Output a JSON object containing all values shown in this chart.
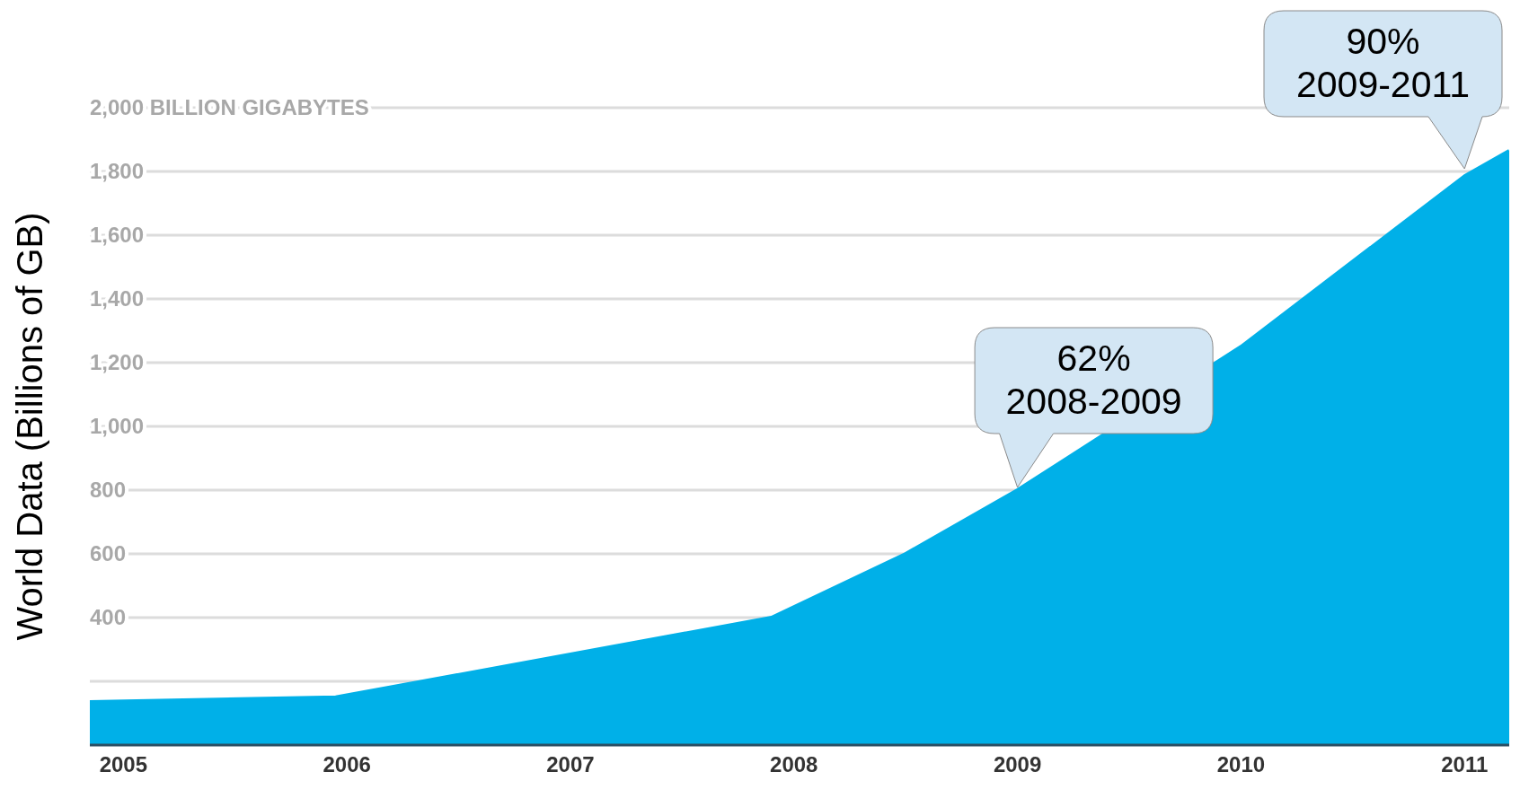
{
  "chart_data": {
    "type": "area",
    "ylabel": "World Data (Billions of GB)",
    "x": [
      2004.85,
      2005.95,
      2007.9,
      2008.5,
      2009,
      2010,
      2011,
      2011.2
    ],
    "series": [
      {
        "color": "#00b0e8",
        "values": [
          135,
          150,
          400,
          600,
          800,
          1250,
          1785,
          1865
        ]
      }
    ],
    "xlim": [
      2004.85,
      2011.2
    ],
    "xticks": [
      2005,
      2006,
      2007,
      2008,
      2009,
      2010,
      2011
    ],
    "ylim": [
      0,
      2000
    ],
    "yticks": [
      {
        "value": 200,
        "label": null
      },
      400,
      600,
      800,
      {
        "value": 1000,
        "label": "1,000"
      },
      {
        "value": 1200,
        "label": "1,200"
      },
      {
        "value": 1400,
        "label": "1,400"
      },
      {
        "value": 1600,
        "label": "1,600"
      },
      {
        "value": 1800,
        "label": "1,800"
      },
      {
        "value": 2000,
        "label": "2,000 BILLION GIGABYTES"
      }
    ],
    "grid": "y",
    "legend": false,
    "annotations": [
      {
        "text": "62%\n2008-2009",
        "x": 2009,
        "y": 800
      },
      {
        "text": "90%\n2009-2011",
        "x": 2011,
        "y": 1800
      }
    ]
  }
}
